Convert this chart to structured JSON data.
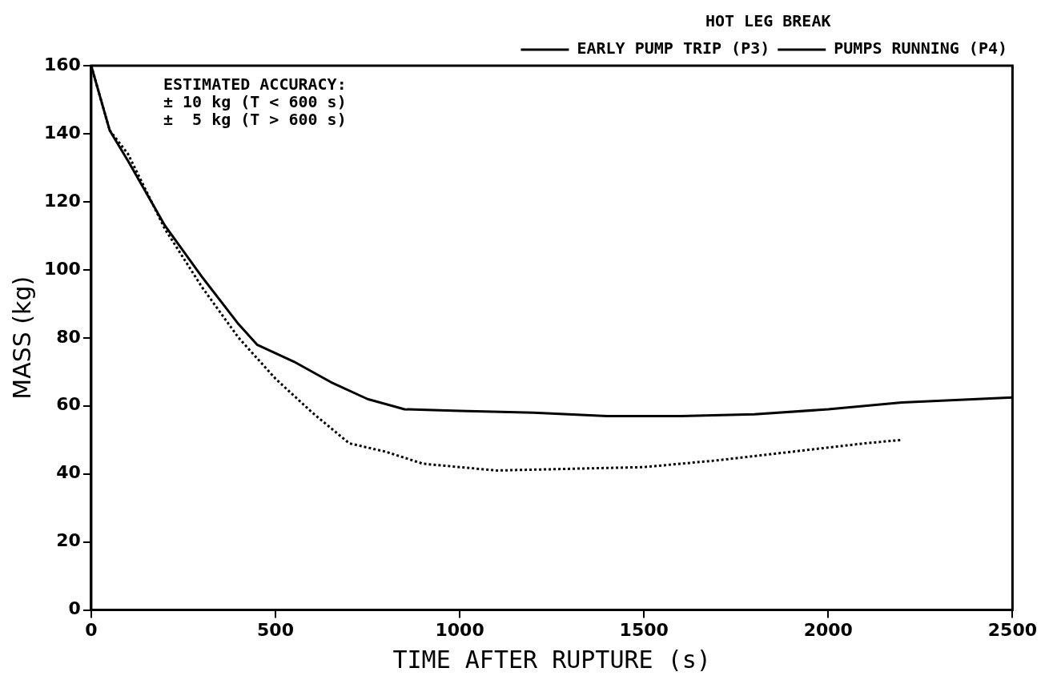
{
  "chart_data": {
    "type": "line",
    "xlabel": "TIME AFTER RUPTURE (s)",
    "ylabel": "MASS (kg)",
    "legend_title": "HOT LEG BREAK",
    "xlim": [
      0,
      2500
    ],
    "xticks": [
      0,
      500,
      1000,
      1500,
      2000,
      2500
    ],
    "ylim": [
      0,
      160
    ],
    "yticks": [
      0,
      20,
      40,
      60,
      80,
      100,
      120,
      140,
      160
    ],
    "grid": false,
    "legend": "top right",
    "marker": "none",
    "annotations": [
      "ESTIMATED ACCURACY:",
      "± 10 kg (T < 600 s)",
      "±  5 kg (T > 600 s)"
    ],
    "series": [
      {
        "name": "EARLY PUMP TRIP (P3)",
        "color": "#000000",
        "line_style": "solid",
        "x": [
          0,
          50,
          100,
          200,
          300,
          400,
          450,
          550,
          650,
          750,
          850,
          1000,
          1200,
          1400,
          1600,
          1800,
          2000,
          2200,
          2500
        ],
        "values": [
          160,
          141,
          132,
          113,
          98,
          84,
          78,
          73,
          67,
          62,
          59,
          58.5,
          58,
          57,
          57,
          57.5,
          59,
          61,
          62.5
        ]
      },
      {
        "name": "PUMPS RUNNING (P4)",
        "color": "#000000",
        "line_style": "dotted",
        "x": [
          0,
          50,
          100,
          200,
          300,
          400,
          500,
          600,
          700,
          800,
          900,
          1000,
          1100,
          1300,
          1500,
          1700,
          1900,
          2100,
          2200
        ],
        "values": [
          160,
          141,
          134,
          112,
          95,
          80,
          68,
          58,
          49,
          46.5,
          43,
          42,
          41,
          41.5,
          42,
          44,
          46.5,
          49,
          50
        ]
      }
    ]
  }
}
